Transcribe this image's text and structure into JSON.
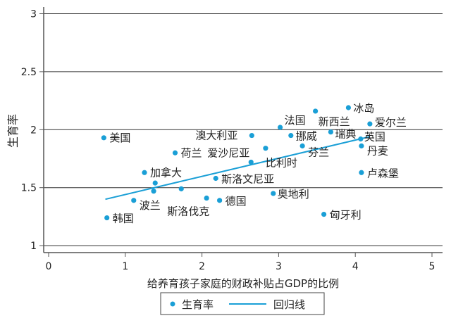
{
  "chart_data": {
    "type": "scatter",
    "title": "",
    "xlabel": "给养育孩子家庭的财政补贴占GDP的比例",
    "ylabel": "生育率",
    "xlim": [
      0,
      5
    ],
    "ylim": [
      1,
      3
    ],
    "xticks": [
      "0",
      "1",
      "2",
      "3",
      "4",
      "5"
    ],
    "yticks": [
      "1",
      "1.5",
      "2",
      "2.5",
      "3"
    ],
    "grid": "horizontal",
    "legend": {
      "position": "bottom",
      "entries": [
        "生育率",
        "回归线"
      ]
    },
    "colors": {
      "points": "#1a9fd6",
      "line": "#1a9fd6"
    },
    "points": [
      {
        "label": "美国",
        "x": 0.72,
        "y": 1.93
      },
      {
        "label": "荷兰",
        "x": 1.65,
        "y": 1.8
      },
      {
        "label": "加拿大",
        "x": 1.25,
        "y": 1.63
      },
      {
        "label": "",
        "x": 1.39,
        "y": 1.54
      },
      {
        "label": "",
        "x": 1.37,
        "y": 1.47
      },
      {
        "label": "斯洛伐克",
        "x": 1.73,
        "y": 1.49
      },
      {
        "label": "波兰",
        "x": 1.11,
        "y": 1.39
      },
      {
        "label": "韩国",
        "x": 0.76,
        "y": 1.24
      },
      {
        "label": "斯洛文尼亚",
        "x": 2.18,
        "y": 1.58
      },
      {
        "label": "",
        "x": 2.06,
        "y": 1.41
      },
      {
        "label": "德国",
        "x": 2.23,
        "y": 1.39
      },
      {
        "label": "澳大利亚",
        "x": 2.65,
        "y": 1.95
      },
      {
        "label": "爱沙尼亚",
        "x": 2.64,
        "y": 1.72
      },
      {
        "label": "比利时",
        "x": 2.83,
        "y": 1.84
      },
      {
        "label": "法国",
        "x": 3.02,
        "y": 2.02
      },
      {
        "label": "新西兰",
        "x": 3.48,
        "y": 2.16
      },
      {
        "label": "冰岛",
        "x": 3.91,
        "y": 2.19
      },
      {
        "label": "爱尔兰",
        "x": 4.19,
        "y": 2.05
      },
      {
        "label": "挪威",
        "x": 3.16,
        "y": 1.95
      },
      {
        "label": "瑞典",
        "x": 3.68,
        "y": 1.98
      },
      {
        "label": "英国",
        "x": 4.07,
        "y": 1.92
      },
      {
        "label": "丹麦",
        "x": 4.08,
        "y": 1.86
      },
      {
        "label": "芬兰",
        "x": 3.31,
        "y": 1.86
      },
      {
        "label": "卢森堡",
        "x": 4.08,
        "y": 1.63
      },
      {
        "label": "奥地利",
        "x": 2.93,
        "y": 1.45
      },
      {
        "label": "匈牙利",
        "x": 3.59,
        "y": 1.27
      }
    ],
    "regression": {
      "x": [
        0.74,
        4.19
      ],
      "y": [
        1.4,
        1.94
      ]
    }
  }
}
